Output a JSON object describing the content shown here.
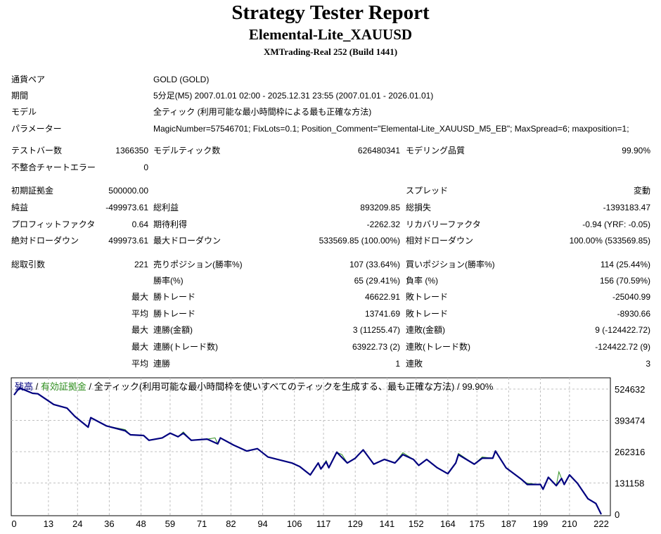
{
  "header": {
    "title": "Strategy Tester Report",
    "ea_name": "Elemental-Lite_XAUUSD",
    "server": "XMTrading-Real 252 (Build 1441)"
  },
  "info": [
    {
      "label": "通貨ペア",
      "value": "GOLD (GOLD)"
    },
    {
      "label": "期間",
      "value": "5分足(M5) 2007.01.01 02:00 - 2025.12.31 23:55 (2007.01.01 - 2026.01.01)"
    },
    {
      "label": "モデル",
      "value": "全ティック (利用可能な最小時間枠による最も正確な方法)"
    },
    {
      "label": "パラメーター",
      "value": "MagicNumber=57546701; FixLots=0.1; Position_Comment=\"Elemental-Lite_XAUUSD_M5_EB\"; MaxSpread=6; maxposition=1;"
    }
  ],
  "stats": [
    [
      "テストバー数",
      "1366350",
      "モデルティック数",
      "626480341",
      "モデリング品質",
      "99.90%",
      ""
    ],
    [
      "不整合チャートエラー",
      "0",
      "",
      "",
      "",
      "",
      ""
    ],
    [
      "初期証拠金",
      "500000.00",
      "",
      "",
      "スプレッド",
      "変動",
      ""
    ],
    [
      "純益",
      "-499973.61",
      "総利益",
      "893209.85",
      "総損失",
      "-1393183.47",
      ""
    ],
    [
      "プロフィットファクタ",
      "0.64",
      "期待利得",
      "-2262.32",
      "リカバリーファクタ",
      "-0.94 (YRF: -0.05)",
      ""
    ],
    [
      "絶対ドローダウン",
      "499973.61",
      "最大ドローダウン",
      "533569.85 (100.00%)",
      "相対ドローダウン",
      "100.00% (533569.85)",
      ""
    ],
    [
      "総取引数",
      "221",
      "売りポジション(勝率%)",
      "107 (33.64%)",
      "買いポジション(勝率%)",
      "114 (25.44%)",
      ""
    ],
    [
      "",
      "",
      "勝率(%)",
      "65 (29.41%)",
      "負率 (%)",
      "156 (70.59%)",
      ""
    ],
    [
      "",
      "",
      "勝トレード",
      "46622.91",
      "敗トレード",
      "-25040.99",
      "最大"
    ],
    [
      "",
      "",
      "勝トレード",
      "13741.69",
      "敗トレード",
      "-8930.66",
      "平均"
    ],
    [
      "",
      "",
      "連勝(金額)",
      "3 (11255.47)",
      "連敗(金額)",
      "9 (-124422.72)",
      "最大"
    ],
    [
      "",
      "",
      "連勝(トレード数)",
      "63922.73 (2)",
      "連敗(トレード数)",
      "-124422.72 (9)",
      "最大"
    ],
    [
      "",
      "",
      "連勝",
      "1",
      "連敗",
      "3",
      "平均"
    ]
  ],
  "legend": {
    "balance": "残高",
    "sep1": " / ",
    "equity": "有効証拠金",
    "rest": " / 全ティック(利用可能な最小時間枠を使いすべてのティックを生成する、最も正確な方法) / 99.90%"
  },
  "colors": {
    "balance": "#00007f",
    "equity": "#2f8f1f",
    "grid": "#c0c0c0"
  },
  "chart_data": {
    "type": "line",
    "xlabel": "",
    "ylabel": "",
    "x_ticks": [
      "0",
      "13",
      "24",
      "36",
      "48",
      "59",
      "71",
      "82",
      "94",
      "106",
      "117",
      "129",
      "141",
      "152",
      "164",
      "175",
      "187",
      "199",
      "210",
      "222"
    ],
    "y_ticks": [
      "524632",
      "393474",
      "262316",
      "131158",
      "0"
    ],
    "xlim": [
      0,
      222
    ],
    "ylim": [
      0,
      570000
    ],
    "grid": true,
    "series": [
      {
        "name": "残高",
        "points": [
          [
            0,
            500000
          ],
          [
            2,
            530000
          ],
          [
            7,
            507000
          ],
          [
            9,
            505000
          ],
          [
            15,
            460000
          ],
          [
            20,
            445000
          ],
          [
            23,
            410000
          ],
          [
            28,
            365000
          ],
          [
            29,
            405000
          ],
          [
            35,
            370000
          ],
          [
            42,
            350000
          ],
          [
            44,
            333000
          ],
          [
            49,
            330000
          ],
          [
            51,
            310000
          ],
          [
            56,
            320000
          ],
          [
            59,
            340000
          ],
          [
            62,
            325000
          ],
          [
            64,
            340000
          ],
          [
            67,
            310000
          ],
          [
            73,
            315000
          ],
          [
            77,
            295000
          ],
          [
            78,
            320000
          ],
          [
            83,
            290000
          ],
          [
            88,
            265000
          ],
          [
            92,
            275000
          ],
          [
            96,
            240000
          ],
          [
            105,
            215000
          ],
          [
            108,
            200000
          ],
          [
            112,
            165000
          ],
          [
            115,
            215000
          ],
          [
            116,
            190000
          ],
          [
            118,
            220000
          ],
          [
            119,
            195000
          ],
          [
            122,
            260000
          ],
          [
            126,
            215000
          ],
          [
            129,
            235000
          ],
          [
            132,
            270000
          ],
          [
            136,
            210000
          ],
          [
            140,
            230000
          ],
          [
            144,
            215000
          ],
          [
            147,
            250000
          ],
          [
            151,
            230000
          ],
          [
            153,
            205000
          ],
          [
            156,
            230000
          ],
          [
            160,
            195000
          ],
          [
            164,
            170000
          ],
          [
            167,
            215000
          ],
          [
            168,
            250000
          ],
          [
            174,
            210000
          ],
          [
            177,
            235000
          ],
          [
            181,
            235000
          ],
          [
            182,
            265000
          ],
          [
            186,
            195000
          ],
          [
            192,
            145000
          ],
          [
            194,
            125000
          ],
          [
            199,
            125000
          ],
          [
            200,
            105000
          ],
          [
            202,
            155000
          ],
          [
            205,
            120000
          ],
          [
            207,
            150000
          ],
          [
            208,
            125000
          ],
          [
            210,
            165000
          ],
          [
            213,
            130000
          ],
          [
            217,
            65000
          ],
          [
            220,
            45000
          ],
          [
            222,
            0
          ]
        ]
      },
      {
        "name": "有効証拠金",
        "points": [
          [
            0,
            500000
          ],
          [
            2,
            530000
          ],
          [
            7,
            507000
          ],
          [
            9,
            505000
          ],
          [
            15,
            460000
          ],
          [
            20,
            445000
          ],
          [
            23,
            410000
          ],
          [
            28,
            365000
          ],
          [
            29,
            405000
          ],
          [
            35,
            370000
          ],
          [
            42,
            355000
          ],
          [
            44,
            333000
          ],
          [
            49,
            330000
          ],
          [
            51,
            310000
          ],
          [
            56,
            320000
          ],
          [
            59,
            340000
          ],
          [
            62,
            325000
          ],
          [
            64,
            345000
          ],
          [
            67,
            310000
          ],
          [
            73,
            315000
          ],
          [
            76,
            320000
          ],
          [
            77,
            295000
          ],
          [
            78,
            320000
          ],
          [
            83,
            290000
          ],
          [
            88,
            265000
          ],
          [
            92,
            275000
          ],
          [
            96,
            240000
          ],
          [
            105,
            215000
          ],
          [
            108,
            200000
          ],
          [
            112,
            165000
          ],
          [
            115,
            215000
          ],
          [
            116,
            190000
          ],
          [
            118,
            225000
          ],
          [
            119,
            195000
          ],
          [
            122,
            260000
          ],
          [
            124,
            250000
          ],
          [
            126,
            215000
          ],
          [
            129,
            235000
          ],
          [
            132,
            270000
          ],
          [
            136,
            210000
          ],
          [
            140,
            230000
          ],
          [
            144,
            215000
          ],
          [
            147,
            258000
          ],
          [
            151,
            230000
          ],
          [
            153,
            205000
          ],
          [
            156,
            230000
          ],
          [
            160,
            195000
          ],
          [
            164,
            170000
          ],
          [
            167,
            215000
          ],
          [
            168,
            255000
          ],
          [
            174,
            210000
          ],
          [
            177,
            240000
          ],
          [
            181,
            235000
          ],
          [
            182,
            265000
          ],
          [
            186,
            195000
          ],
          [
            192,
            145000
          ],
          [
            194,
            130000
          ],
          [
            199,
            125000
          ],
          [
            200,
            105000
          ],
          [
            202,
            155000
          ],
          [
            205,
            120000
          ],
          [
            206,
            178000
          ],
          [
            207,
            150000
          ],
          [
            208,
            125000
          ],
          [
            210,
            165000
          ],
          [
            213,
            130000
          ],
          [
            217,
            65000
          ],
          [
            220,
            45000
          ],
          [
            222,
            0
          ]
        ]
      }
    ]
  }
}
